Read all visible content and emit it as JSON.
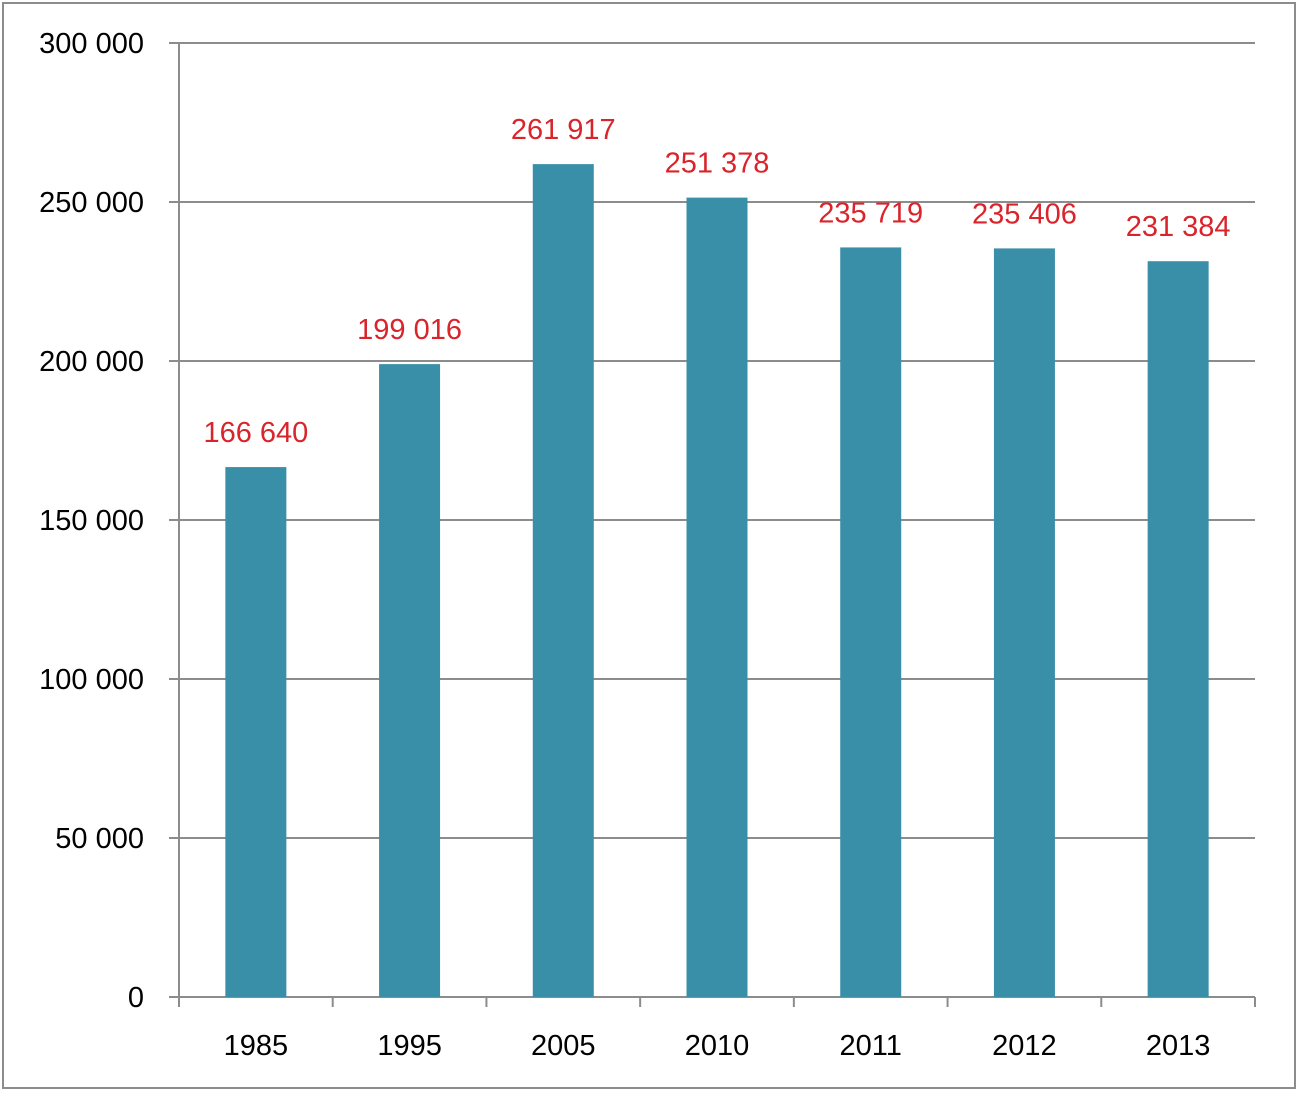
{
  "chart_data": {
    "type": "bar",
    "categories": [
      "1985",
      "1995",
      "2005",
      "2010",
      "2011",
      "2012",
      "2013"
    ],
    "values": [
      166640,
      199016,
      261917,
      251378,
      235719,
      235406,
      231384
    ],
    "data_labels": [
      "166 640",
      "199 016",
      "261 917",
      "251 378",
      "235 719",
      "235 406",
      "231 384"
    ],
    "title": "",
    "xlabel": "",
    "ylabel": "",
    "ylim": [
      0,
      300000
    ],
    "yticks": [
      0,
      50000,
      100000,
      150000,
      200000,
      250000,
      300000
    ],
    "ytick_labels": [
      "0",
      "50 000",
      "100 000",
      "150 000",
      "200 000",
      "250 000",
      "300 000"
    ],
    "grid": true,
    "legend": "none",
    "colors": {
      "bar": "#3a8fa8",
      "data_label": "#d9242b",
      "grid": "#8c8c8c",
      "axis": "#8c8c8c"
    }
  }
}
